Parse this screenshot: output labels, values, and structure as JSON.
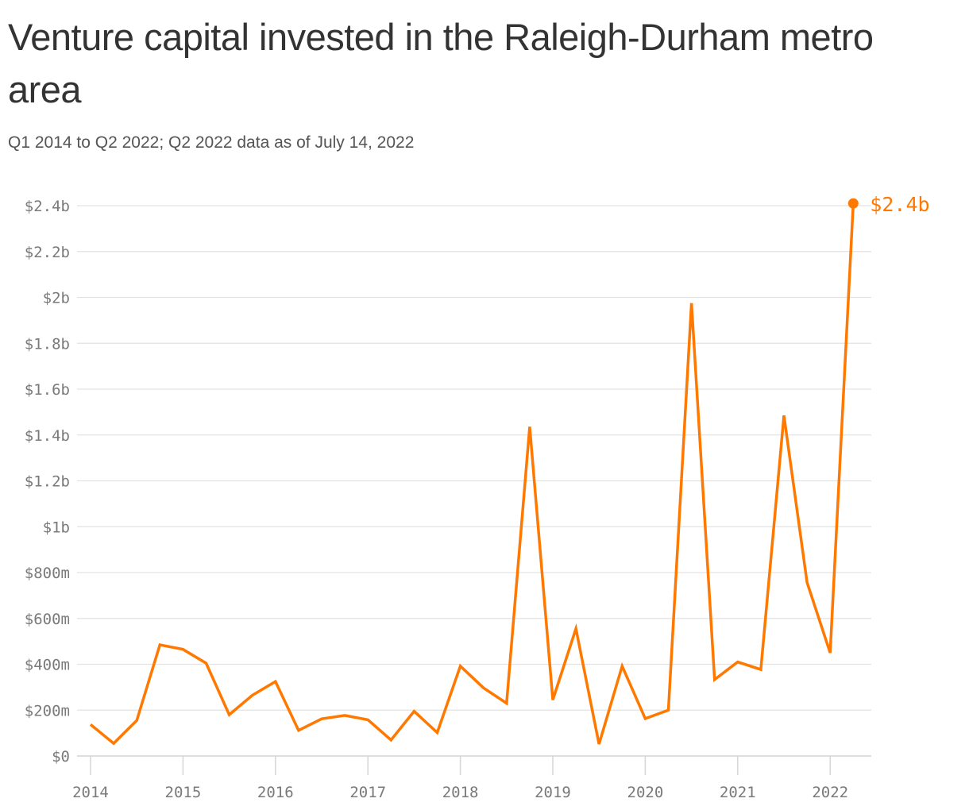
{
  "title": "Venture capital invested in the Raleigh-Durham metro area",
  "subtitle": "Q1 2014 to Q2 2022; Q2 2022 data as of July 14, 2022",
  "colors": {
    "line": "#ff7900",
    "grid": "#e3e3e3",
    "axis_text": "#7a7a7a",
    "title_text": "#333333"
  },
  "chart_data": {
    "type": "line",
    "title": "Venture capital invested in the Raleigh-Durham metro area",
    "subtitle": "Q1 2014 to Q2 2022; Q2 2022 data as of July 14, 2022",
    "xlabel": "",
    "ylabel": "",
    "unit": "USD",
    "ylim": [
      0,
      2400000000
    ],
    "grid": true,
    "legend": "none",
    "y_ticks": [
      0,
      200000000,
      400000000,
      600000000,
      800000000,
      1000000000,
      1200000000,
      1400000000,
      1600000000,
      1800000000,
      2000000000,
      2200000000,
      2400000000
    ],
    "y_tick_labels": [
      "$0",
      "$200m",
      "$400m",
      "$600m",
      "$800m",
      "$1b",
      "$1.2b",
      "$1.4b",
      "$1.6b",
      "$1.8b",
      "$2b",
      "$2.2b",
      "$2.4b"
    ],
    "x_ticks": [
      2014,
      2015,
      2016,
      2017,
      2018,
      2019,
      2020,
      2021,
      2022
    ],
    "x_tick_labels": [
      "2014",
      "2015",
      "2016",
      "2017",
      "2018",
      "2019",
      "2020",
      "2021",
      "2022"
    ],
    "x": [
      "Q1 2014",
      "Q2 2014",
      "Q3 2014",
      "Q4 2014",
      "Q1 2015",
      "Q2 2015",
      "Q3 2015",
      "Q4 2015",
      "Q1 2016",
      "Q2 2016",
      "Q3 2016",
      "Q4 2016",
      "Q1 2017",
      "Q2 2017",
      "Q3 2017",
      "Q4 2017",
      "Q1 2018",
      "Q2 2018",
      "Q3 2018",
      "Q4 2018",
      "Q1 2019",
      "Q2 2019",
      "Q3 2019",
      "Q4 2019",
      "Q1 2020",
      "Q2 2020",
      "Q3 2020",
      "Q4 2020",
      "Q1 2021",
      "Q2 2021",
      "Q3 2021",
      "Q4 2021",
      "Q1 2022",
      "Q2 2022"
    ],
    "series": [
      {
        "values": [
          137000000,
          55000000,
          155000000,
          485000000,
          465000000,
          405000000,
          180000000,
          265000000,
          325000000,
          112000000,
          162000000,
          177000000,
          158000000,
          70000000,
          195000000,
          102000000,
          392000000,
          297000000,
          230000000,
          1436000000,
          245000000,
          555000000,
          52000000,
          392000000,
          163000000,
          200000000,
          1975000000,
          333000000,
          410000000,
          377000000,
          1485000000,
          757000000,
          450000000,
          2410000000
        ]
      }
    ],
    "end_label": "$2.4b"
  }
}
